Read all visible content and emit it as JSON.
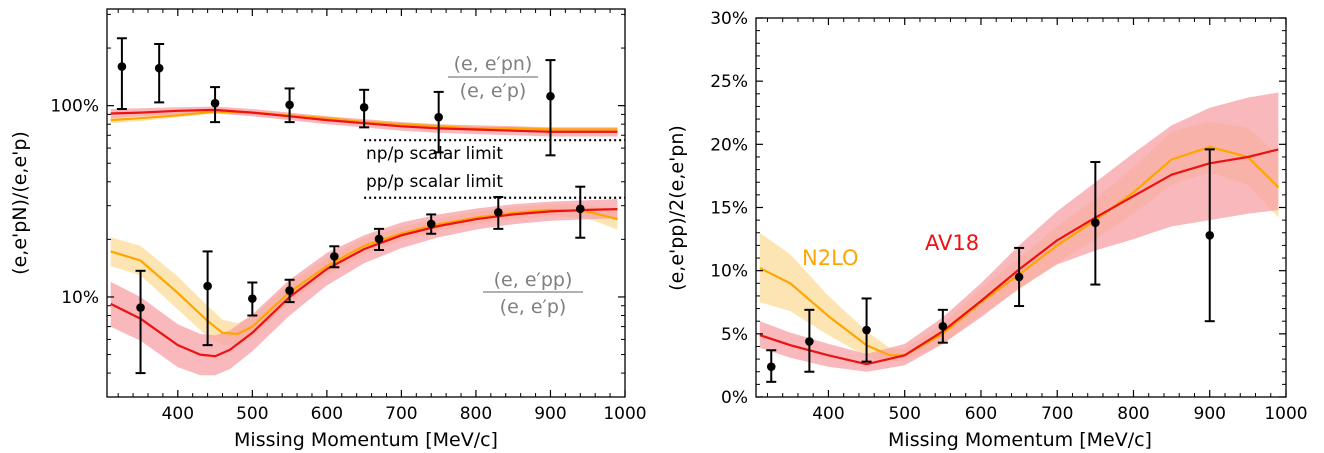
{
  "chart_data": [
    {
      "type": "line",
      "xlabel": "Missing Momentum [MeV/c]",
      "ylabel": "(e,e'pN)/(e,e'p)",
      "xlim": [
        305,
        1000
      ],
      "ylim": [
        3,
        320
      ],
      "yscale": "log",
      "x_ticks": [
        400,
        500,
        600,
        700,
        800,
        900,
        1000
      ],
      "y_ticks": [
        {
          "value": 10,
          "label": "10%"
        },
        {
          "value": 100,
          "label": "100%"
        }
      ],
      "colors": {
        "AV18": "#ee1111",
        "N2LO": "#ffa500",
        "AV18_band": "#f7a0a6",
        "N2LO_band": "#fde0a6"
      },
      "series": [
        {
          "key": "np_av18",
          "color": "#ee1111",
          "x": [
            310,
            350,
            400,
            450,
            500,
            550,
            600,
            650,
            700,
            750,
            800,
            850,
            900,
            950,
            990
          ],
          "y": [
            91,
            92,
            94,
            95,
            92,
            88,
            84,
            81,
            78,
            76,
            75,
            74,
            73,
            73,
            73
          ],
          "lo": [
            86,
            88,
            90,
            91,
            88,
            84,
            80,
            77,
            74,
            72,
            71,
            70,
            69,
            69,
            69
          ],
          "hi": [
            96,
            97,
            98,
            99,
            96,
            92,
            88,
            85,
            82,
            80,
            79,
            78,
            77,
            77,
            77
          ]
        },
        {
          "key": "np_n2lo",
          "color": "#ffa500",
          "x": [
            310,
            350,
            400,
            450,
            500,
            550,
            600,
            650,
            700,
            750,
            800,
            850,
            900,
            950,
            990
          ],
          "y": [
            84,
            86,
            89,
            93,
            92,
            89,
            86,
            82,
            80,
            78,
            76,
            76,
            75,
            75,
            75
          ],
          "lo": [
            81,
            83,
            87,
            91,
            90,
            87,
            84,
            80,
            78,
            76,
            74,
            74,
            73,
            73,
            73
          ],
          "hi": [
            87,
            89,
            92,
            95,
            94,
            91,
            88,
            84,
            82,
            80,
            78,
            78,
            77,
            77,
            77
          ]
        },
        {
          "key": "pp_av18",
          "color": "#ee1111",
          "x": [
            310,
            350,
            400,
            430,
            450,
            470,
            500,
            550,
            600,
            650,
            700,
            750,
            800,
            850,
            900,
            950,
            990
          ],
          "y": [
            9.2,
            7.7,
            5.6,
            5.0,
            4.9,
            5.3,
            6.5,
            10.0,
            14.0,
            17.8,
            21.0,
            23.5,
            25.5,
            27.0,
            28.0,
            28.5,
            28.8
          ],
          "lo": [
            7.0,
            5.9,
            4.3,
            3.9,
            3.9,
            4.2,
            5.2,
            8.0,
            11.5,
            15.0,
            18.0,
            20.5,
            22.5,
            24.0,
            25.0,
            25.5,
            25.8
          ],
          "hi": [
            12.0,
            10.0,
            7.2,
            6.4,
            6.3,
            6.7,
            8.1,
            12.3,
            17.0,
            21.0,
            24.5,
            27.0,
            29.0,
            30.5,
            31.5,
            32.0,
            32.5
          ]
        },
        {
          "key": "pp_n2lo",
          "color": "#ffa500",
          "x": [
            310,
            350,
            400,
            440,
            460,
            480,
            500,
            550,
            600,
            650,
            700,
            750,
            800,
            850,
            900,
            950,
            990
          ],
          "y": [
            17.3,
            15.5,
            10.5,
            7.5,
            6.5,
            6.4,
            7.0,
            10.6,
            14.5,
            18.5,
            21.5,
            24.0,
            26.0,
            27.5,
            28.5,
            28.0,
            25.5
          ],
          "lo": [
            14.5,
            13.0,
            8.6,
            6.2,
            5.6,
            5.6,
            6.2,
            9.4,
            13.0,
            16.8,
            19.8,
            22.2,
            24.0,
            25.5,
            26.5,
            25.8,
            22.5
          ],
          "hi": [
            20.5,
            18.5,
            12.8,
            9.0,
            7.6,
            7.3,
            7.9,
            11.8,
            16.0,
            20.2,
            23.2,
            25.8,
            28.0,
            29.5,
            30.5,
            30.3,
            28.5
          ]
        }
      ],
      "points": [
        {
          "key": "np_data",
          "x": [
            325,
            375,
            450,
            550,
            650,
            750,
            900
          ],
          "y": [
            160,
            157,
            103,
            101,
            98,
            87,
            112
          ],
          "lo": [
            96,
            104,
            82,
            82,
            77,
            57,
            55
          ],
          "hi": [
            225,
            210,
            125,
            123,
            121,
            118,
            173
          ]
        },
        {
          "key": "pp_data",
          "x": [
            350,
            440,
            500,
            550,
            610,
            670,
            740,
            830,
            940
          ],
          "y": [
            8.8,
            11.4,
            9.8,
            10.8,
            16.3,
            20.1,
            24.1,
            27.7,
            28.9
          ],
          "lo": [
            4.0,
            5.6,
            8.0,
            9.4,
            14.3,
            17.6,
            21.4,
            22.7,
            20.4
          ],
          "hi": [
            13.7,
            17.3,
            11.9,
            12.3,
            18.4,
            22.7,
            27.0,
            33.3,
            37.7
          ]
        }
      ],
      "limits": [
        {
          "key": "np_limit",
          "y": 66,
          "x_from": 650,
          "label": "np/p scalar limit"
        },
        {
          "key": "pp_limit",
          "y": 33,
          "x_from": 650,
          "label": "pp/p scalar limit"
        }
      ],
      "annotations": {
        "np_ratio_num": "(e, e′pn)",
        "np_ratio_den": "(e, e′p)",
        "pp_ratio_num": "(e, e′pp)",
        "pp_ratio_den": "(e, e′p)"
      }
    },
    {
      "type": "line",
      "xlabel": "Missing Momentum [MeV/c]",
      "ylabel": "(e,e'pp)/2(e,e'pn)",
      "xlim": [
        305,
        1000
      ],
      "ylim": [
        0,
        30
      ],
      "x_ticks": [
        400,
        500,
        600,
        700,
        800,
        900,
        1000
      ],
      "y_ticks": [
        {
          "value": 0,
          "label": "0%"
        },
        {
          "value": 5,
          "label": "5%"
        },
        {
          "value": 10,
          "label": "10%"
        },
        {
          "value": 15,
          "label": "15%"
        },
        {
          "value": 20,
          "label": "20%"
        },
        {
          "value": 25,
          "label": "25%"
        },
        {
          "value": 30,
          "label": "30%"
        }
      ],
      "series": [
        {
          "key": "av18",
          "name": "AV18",
          "color": "#ee1111",
          "x": [
            310,
            350,
            400,
            450,
            500,
            550,
            600,
            650,
            700,
            750,
            800,
            850,
            900,
            950,
            990
          ],
          "y": [
            4.9,
            4.1,
            3.3,
            2.6,
            3.3,
            5.2,
            7.6,
            10.1,
            12.4,
            14.2,
            15.9,
            17.6,
            18.5,
            19.0,
            19.6
          ],
          "lo": [
            3.9,
            3.1,
            2.4,
            2.0,
            2.5,
            4.2,
            6.3,
            8.6,
            10.5,
            11.6,
            12.5,
            13.5,
            14.0,
            14.5,
            14.8
          ],
          "hi": [
            6.0,
            5.1,
            4.2,
            3.4,
            4.2,
            6.3,
            9.0,
            12.0,
            14.7,
            17.0,
            19.3,
            21.5,
            22.9,
            23.7,
            24.1
          ]
        },
        {
          "key": "n2lo",
          "name": "N2LO",
          "color": "#ffa500",
          "x": [
            310,
            350,
            400,
            450,
            480,
            500,
            550,
            600,
            650,
            700,
            750,
            800,
            850,
            900,
            950,
            990
          ],
          "y": [
            10.2,
            9.0,
            6.4,
            4.1,
            3.3,
            3.3,
            5.0,
            7.5,
            9.7,
            12.0,
            14.0,
            16.2,
            18.8,
            19.8,
            19.0,
            16.6
          ],
          "lo": [
            7.5,
            6.8,
            4.9,
            3.2,
            2.8,
            2.9,
            4.2,
            6.5,
            8.5,
            10.6,
            12.5,
            14.5,
            16.8,
            17.8,
            16.8,
            14.2
          ],
          "hi": [
            13.0,
            11.3,
            8.0,
            5.2,
            3.9,
            3.8,
            5.8,
            8.6,
            11.0,
            13.5,
            15.7,
            18.2,
            21.0,
            21.8,
            21.3,
            19.2
          ]
        }
      ],
      "points": [
        {
          "key": "ratio_data",
          "x": [
            325,
            375,
            450,
            550,
            650,
            750,
            900
          ],
          "y": [
            2.4,
            4.4,
            5.3,
            5.6,
            9.5,
            13.8,
            12.8
          ],
          "lo": [
            1.2,
            2.0,
            2.8,
            4.3,
            7.2,
            8.9,
            6.0
          ],
          "hi": [
            3.7,
            6.9,
            7.8,
            6.9,
            11.8,
            18.6,
            19.6
          ]
        }
      ]
    }
  ]
}
